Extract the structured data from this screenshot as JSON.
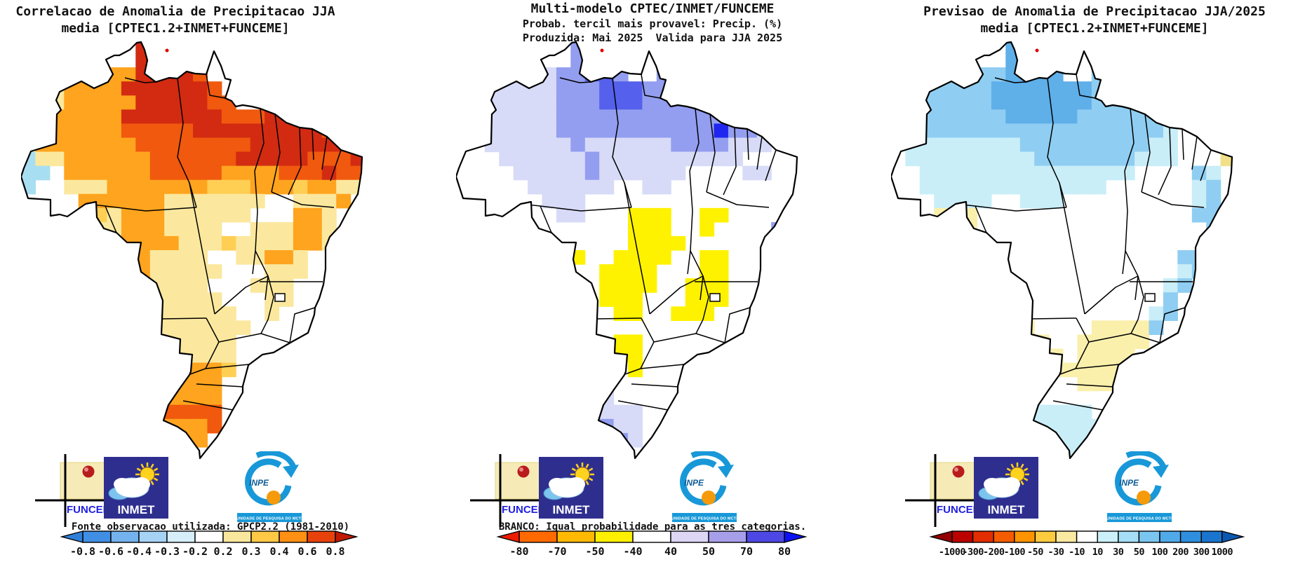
{
  "panels": [
    {
      "id": "correlation",
      "title_lines": [
        "Correlacao de Anomalia de Precipitacao JJA",
        "media [CPTEC1.2+INMET+FUNCEME]",
        ""
      ],
      "note": "Fonte observacao utilizada: GPCP2.2 (1981-2010)",
      "colorbar": {
        "labels": [
          "-0.8",
          "-0.6",
          "-0.4",
          "-0.3",
          "-0.2",
          "0.2",
          "0.3",
          "0.4",
          "0.6",
          "0.8"
        ],
        "segment_colors": [
          "#418FE4",
          "#74B2EE",
          "#A6D2F6",
          "#D6EEFA",
          "#FFFFFF",
          "#FAE79E",
          "#FFC946",
          "#FF9013",
          "#E8420C"
        ],
        "left_arrow_color": "#2F7FD8",
        "right_arrow_color": "#C01A02"
      },
      "map": {
        "palette": {
          "K": "#D22B12",
          "r": "#F0590E",
          "o": "#FFA41E",
          "g": "#FFCF54",
          "y": "#FBE89E",
          "B": "#A8DEF2"
        },
        "cells": [
          "........KKKK............",
          "........KKKK............",
          "......ooKKKKr...........",
          ".gyooooKKKKKKr..........",
          ".gyoooooKKKKKrr..rr.....",
          ".ooooooKKKKKKKrrrKKKr...",
          ".oooooorrrrrKKKKKKKKKr..",
          ".ooooooorrrrrrrrKKKKKKKK",
          "ByyoooooorrrrrrKKKKKrrrK",
          "BB.oooooorrrrroooorrrKrr",
          "B..yyyooooooogggooogooyy",
          "....ooooooyyyyyyy..yyyo.",
          ".....gyoooyyyyyy...ooy..",
          ".....yyoooyyyy..yyyooy..",
          "......oooooyyygyyyyooy..",
          "......oooyyyy..yyooy....",
          "......oooyyyyy...yyy....",
          ".......ooyyyy...yyy.....",
          ".......yyyyyyy...yy.....",
          "........yyyyyyy..y......",
          "........yyyyyyyy........",
          ".........yyyyyy.........",
          ".........yyyyyy.........",
          ".........ooooog.........",
          ".........ooooo..........",
          "..........oooo..........",
          "..........rrrr..........",
          "..........ooor..........",
          "..........ooo...........",
          "...........o............"
        ]
      }
    },
    {
      "id": "probability",
      "title_lines": [
        "Multi-modelo CPTEC/INMET/FUNCEME",
        "Probab. tercil mais provavel: Precip. (%)",
        "Produzida: Mai 2025  Valida para JJA 2025"
      ],
      "note": "BRANCO: Igual probabilidade para as tres categorias.",
      "colorbar": {
        "labels": [
          "-80",
          "-70",
          "-50",
          "-40",
          "40",
          "50",
          "70",
          "80"
        ],
        "segment_colors": [
          "#FF6A00",
          "#FFB900",
          "#FFF000",
          "#FFFFFF",
          "#DDD6F5",
          "#A79EEA",
          "#4D48E4"
        ],
        "left_arrow_color": "#ED1C00",
        "right_arrow_color": "#0D12F5"
      },
      "map": {
        "palette": {
          "a": "#D8DBF7",
          "b": "#939EF0",
          "c": "#5560EC",
          "d": "#2026F0",
          "y": "#FFF200",
          "g": "#FFC800"
        },
        "cells": [
          "........bbbb............",
          "........bccb............",
          "......abbccb..bb........",
          ".aaaaaabbbcccbbb........",
          ".aaaaaabbbcccbbbbb......",
          "aaaaaaabbbbbbbbbbbbb....",
          ".aaaaaabbbbbbbbbbbdbba..",
          "..aaaaaabaaaaaabbbbaaa..",
          "...aaaaaabaaaaaaaaaa....",
          "....aaaaabaaaaaa....aa..",
          ".....aaaaaa..aa.........",
          "......aaa...............",
          ".......aa...yyy..yy.....",
          "............yyy..y....ba",
          "............yyyy......ba",
          ".......yy..yyyy..yy...ba",
          "..........yyyy...yy...a.",
          "..........yyyy..yyy..ab.",
          "..........yyy...yyy...b.",
          "...........yy..yyy....b.",
          "........................",
          "...........yy...........",
          "...........yy...........",
          "............y...........",
          "........................",
          "........aaa.............",
          ".......aaaaaa...........",
          ".......aabbaa...........",
          "........aabba...........",
          ".........aaa............"
        ]
      }
    },
    {
      "id": "forecast",
      "title_lines": [
        "Previsao de Anomalia de Precipitacao JJA/2025",
        "media [CPTEC1.2+INMET+FUNCEME]",
        ""
      ],
      "note": "",
      "colorbar": {
        "labels": [
          "-1000",
          "-300",
          "-200",
          "-100",
          "-50",
          "-30",
          "-10",
          "10",
          "30",
          "50",
          "100",
          "200",
          "300",
          "1000"
        ],
        "segment_colors": [
          "#BB0000",
          "#E22D00",
          "#F55C00",
          "#FF9400",
          "#FFCB3E",
          "#FAE9A0",
          "#FFFFFF",
          "#CBF0FA",
          "#A5DEF6",
          "#7AC6F0",
          "#51AAE8",
          "#2F8FDE",
          "#1A75CE"
        ],
        "left_arrow_color": "#930000",
        "right_arrow_color": "#0B58B0"
      },
      "map": {
        "palette": {
          "a": "#C9EEF8",
          "b": "#8FCEF2",
          "c": "#5FAFE9",
          "y": "#FAF0AC",
          "g": "#F0E088"
        },
        "cells": [
          "........cccc............",
          "........cccc............",
          "......bbcccc..bb........",
          ".bbbbbbcccccccbb........",
          ".bbbbbbcccccccbbbb......",
          "bbbbbbbbcccccbbbbbbb....",
          ".abbbbbbbbbbbbbbbbba....",
          ".aaaaaaaabbbbbbbbbaa....",
          ".aaaaaaaaabbbbbbbaaa...g",
          "..aaaaaaaaaaaaaaa....ba.",
          "..aaaaaaaaaaaaa......ab.",
          "...aaaa..aaa.........ab.",
          "...yyy...............bb.",
          "....yy................b.",
          "......................b.",
          "....................bb..",
          "....................ab..",
          "...................ab...",
          "...................b....",
          "........y.........ab....",
          "........yy....yyyyb.....",
          "........yyy..yyyyy......",
          "........yyyy.yyyy.......",
          ".........yyyyyyy........",
          "..........y..yyy........",
          "........................",
          "..........aaaa..........",
          ".........aaaaaa.........",
          ".........aaaaa..........",
          "..........aaa..........."
        ]
      }
    }
  ],
  "logos": {
    "funceme_label": "FUNCEME",
    "inmet_label": "INMET",
    "inpe_label": "INPE",
    "inpe_banner": "UNIDADE DE PESQUISA DO MCTI"
  },
  "marker_color": "#E00000"
}
